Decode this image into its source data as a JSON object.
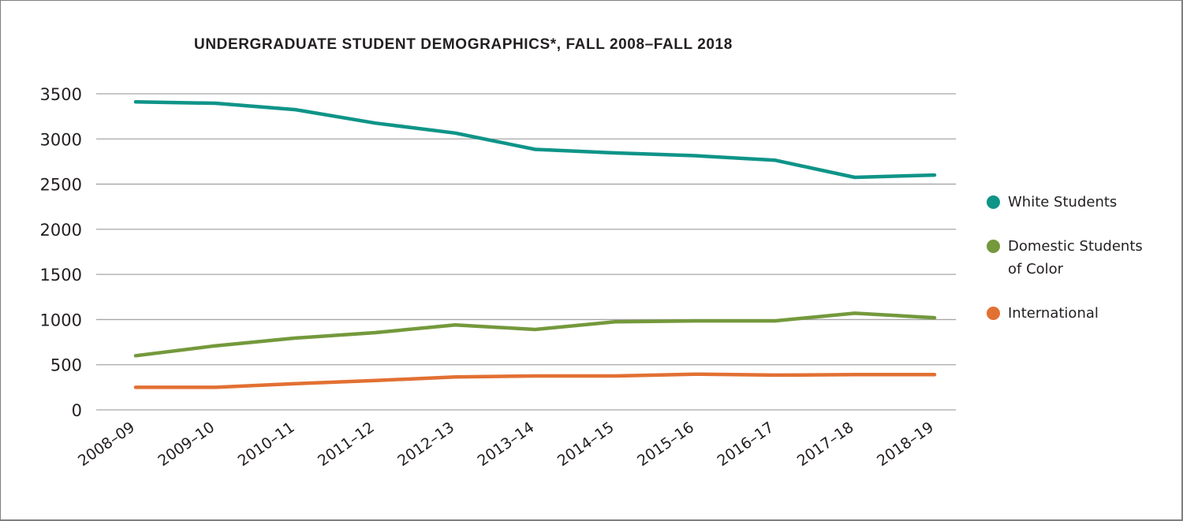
{
  "chart_data": {
    "type": "line",
    "title": "UNDERGRADUATE STUDENT DEMOGRAPHICS*, FALL 2008–FALL 2018",
    "xlabel": "",
    "ylabel": "",
    "ylim": [
      0,
      3500
    ],
    "yticks": [
      "0",
      "500",
      "1000",
      "1500",
      "2000",
      "2500",
      "3000",
      "3500"
    ],
    "ytick_values": [
      0,
      500,
      1000,
      1500,
      2000,
      2500,
      3000,
      3500
    ],
    "grid": true,
    "legend_position": "right",
    "categories": [
      "2008–09",
      "2009–10",
      "2010–11",
      "2011–12",
      "2012–13",
      "2013–14",
      "2014–15",
      "2015–16",
      "2016–17",
      "2017–18",
      "2018–19"
    ],
    "series": [
      {
        "name": "White Students",
        "color": "#0f9488",
        "values": [
          3410,
          3395,
          3325,
          3175,
          3065,
          2885,
          2845,
          2815,
          2765,
          2575,
          2600
        ]
      },
      {
        "name": "Domestic Students of Color",
        "color": "#74993c",
        "values": [
          600,
          710,
          795,
          855,
          940,
          890,
          975,
          985,
          985,
          1070,
          1020
        ]
      },
      {
        "name": "International",
        "color": "#e27033",
        "values": [
          250,
          250,
          290,
          325,
          365,
          375,
          375,
          395,
          385,
          390,
          390
        ]
      }
    ]
  },
  "legend": {
    "items": [
      {
        "lines": [
          "White Students"
        ],
        "color": "#0f9488"
      },
      {
        "lines": [
          "Domestic Students",
          "of Color"
        ],
        "color": "#74993c"
      },
      {
        "lines": [
          "International"
        ],
        "color": "#e27033"
      }
    ]
  }
}
